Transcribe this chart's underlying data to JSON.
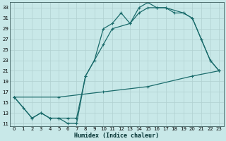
{
  "xlabel": "Humidex (Indice chaleur)",
  "bg_color": "#c8e8e8",
  "line_color": "#1a6b6b",
  "grid_color": "#b0d0d0",
  "xlim": [
    -0.5,
    23.5
  ],
  "ylim": [
    10.5,
    34
  ],
  "yticks": [
    11,
    13,
    15,
    17,
    19,
    21,
    23,
    25,
    27,
    29,
    31,
    33
  ],
  "xticks": [
    0,
    1,
    2,
    3,
    4,
    5,
    6,
    7,
    8,
    9,
    10,
    11,
    12,
    13,
    14,
    15,
    16,
    17,
    18,
    19,
    20,
    21,
    22,
    23
  ],
  "line1_x": [
    0,
    1,
    2,
    3,
    4,
    5,
    6,
    7,
    8,
    9,
    10,
    11,
    12,
    13,
    14,
    15,
    16,
    17,
    18,
    19,
    20,
    21,
    22,
    23
  ],
  "line1_y": [
    16,
    14,
    12,
    13,
    12,
    12,
    11,
    11,
    20,
    23,
    29,
    30,
    32,
    30,
    33,
    34,
    33,
    33,
    32,
    32,
    31,
    27,
    23,
    21
  ],
  "line2_x": [
    0,
    2,
    3,
    4,
    5,
    6,
    7,
    8,
    10,
    11,
    13,
    14,
    15,
    16,
    17,
    19,
    20,
    21,
    22,
    23
  ],
  "line2_y": [
    16,
    12,
    13,
    12,
    12,
    12,
    12,
    20,
    26,
    29,
    30,
    32,
    33,
    33,
    33,
    32,
    31,
    27,
    23,
    21
  ],
  "line3_x": [
    0,
    5,
    10,
    15,
    20,
    23
  ],
  "line3_y": [
    16,
    16,
    17,
    18,
    20,
    21
  ],
  "markersize": 2.5,
  "linewidth": 0.9
}
